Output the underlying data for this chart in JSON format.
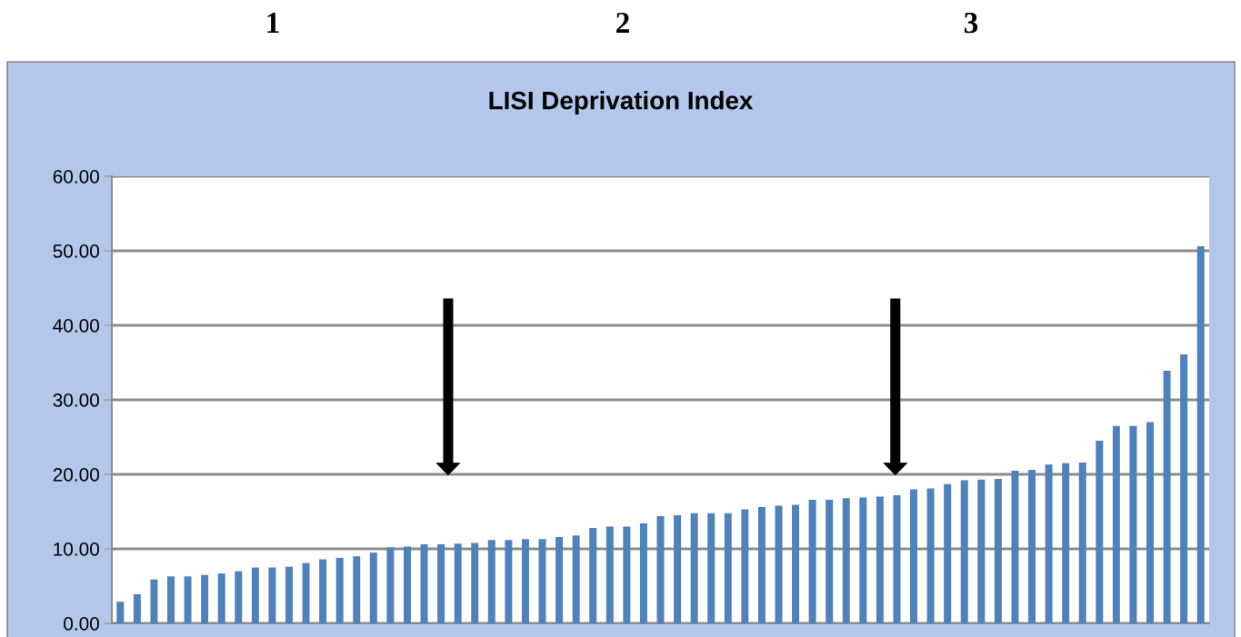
{
  "chart_data": {
    "type": "bar",
    "title": "LISI Deprivation Index",
    "annotations": [
      "1",
      "2",
      "3"
    ],
    "categories": [
      null,
      null,
      null,
      null,
      null,
      null,
      null,
      null,
      null,
      null,
      null,
      null,
      null,
      null,
      null,
      null,
      null,
      null,
      null,
      null,
      null,
      null,
      null,
      null,
      null,
      null,
      null,
      null,
      null,
      null,
      null,
      null,
      null,
      null,
      null,
      null,
      null,
      null,
      null,
      null,
      null,
      null,
      null,
      null,
      null,
      null,
      null,
      null,
      null,
      null,
      null,
      null,
      null,
      null,
      null,
      null,
      null,
      null,
      null,
      null,
      null,
      null,
      null,
      null,
      null
    ],
    "values": [
      2.9,
      3.9,
      5.9,
      6.3,
      6.3,
      6.5,
      6.7,
      7.0,
      7.5,
      7.5,
      7.6,
      8.1,
      8.6,
      8.8,
      9.0,
      9.5,
      10.2,
      10.3,
      10.6,
      10.6,
      10.7,
      10.8,
      11.2,
      11.2,
      11.3,
      11.3,
      11.6,
      11.8,
      12.8,
      13.0,
      13.0,
      13.4,
      14.4,
      14.5,
      14.8,
      14.8,
      14.8,
      15.3,
      15.6,
      15.8,
      15.9,
      16.6,
      16.6,
      16.8,
      16.9,
      17.0,
      17.2,
      18.0,
      18.1,
      18.7,
      19.2,
      19.3,
      19.4,
      20.5,
      20.6,
      21.3,
      21.5,
      21.6,
      24.5,
      26.5,
      26.5,
      27.0,
      33.9,
      36.1,
      50.6
    ],
    "color": "#4f81bd",
    "ylim": [
      0,
      60
    ],
    "yticks": [
      {
        "value": 0,
        "label": "0.00"
      },
      {
        "value": 10,
        "label": "10.00"
      },
      {
        "value": 20,
        "label": "20.00"
      },
      {
        "value": 30,
        "label": "30.00"
      },
      {
        "value": 40,
        "label": "40.00"
      },
      {
        "value": 50,
        "label": "50.00"
      },
      {
        "value": 60,
        "label": "60.00"
      }
    ],
    "grid": "y"
  }
}
